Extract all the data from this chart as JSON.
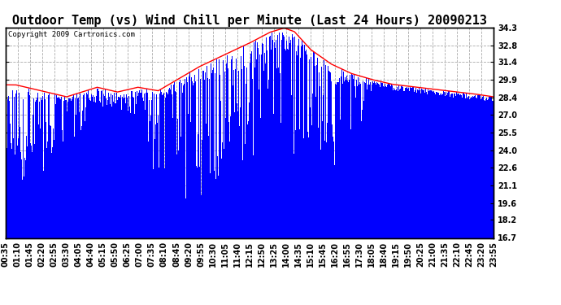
{
  "title": "Outdoor Temp (vs) Wind Chill per Minute (Last 24 Hours) 20090213",
  "copyright": "Copyright 2009 Cartronics.com",
  "yticks": [
    16.7,
    18.2,
    19.6,
    21.1,
    22.6,
    24.0,
    25.5,
    27.0,
    28.4,
    29.9,
    31.4,
    32.8,
    34.3
  ],
  "ylim": [
    16.7,
    34.3
  ],
  "xtick_labels": [
    "00:35",
    "01:10",
    "01:45",
    "02:20",
    "02:55",
    "03:30",
    "04:05",
    "04:40",
    "05:15",
    "05:50",
    "06:25",
    "07:00",
    "07:35",
    "08:10",
    "08:45",
    "09:20",
    "09:55",
    "10:30",
    "11:05",
    "11:40",
    "12:15",
    "12:50",
    "13:25",
    "14:00",
    "14:35",
    "15:10",
    "15:45",
    "16:20",
    "16:55",
    "17:30",
    "18:05",
    "18:40",
    "19:15",
    "19:50",
    "20:25",
    "21:00",
    "21:35",
    "22:10",
    "22:45",
    "23:20",
    "23:55"
  ],
  "bar_color": "#0000ff",
  "line_color": "#ff0000",
  "background_color": "#ffffff",
  "grid_color": "#aaaaaa",
  "title_fontsize": 11,
  "copyright_fontsize": 6.5,
  "tick_fontsize": 7
}
